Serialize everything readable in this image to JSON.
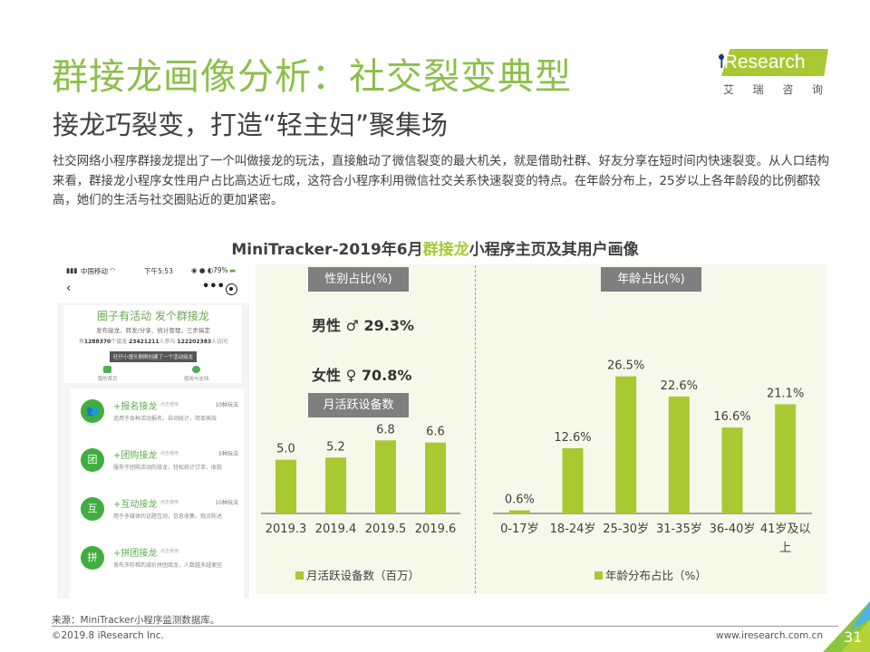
{
  "header": {
    "title": "群接龙画像分析：社交裂变典型",
    "subtitle": "接龙巧裂变，打造“轻主妇”聚集场",
    "description": "社交网络小程序群接龙提出了一个叫做接龙的玩法，直接触动了微信裂变的最大机关，就是借助社群、好友分享在短时间内快速裂变。从人口结构来看，群接龙小程序女性用户占比高达近七成，这符合小程序利用微信社交关系快速裂变的特点。在年龄分布上，25岁以上各年龄段的比例都较高，她们的生活与社交圈贴近的更加紧密。"
  },
  "logo": {
    "brand": "iResearch",
    "chinese": [
      "艾",
      "瑞",
      "咨",
      "询"
    ]
  },
  "figure_title": {
    "prefix": "MiniTracker-2019年6月",
    "highlight": "群接龙",
    "suffix": "小程序主页及其用户画像"
  },
  "phone": {
    "status": {
      "carrier": "中国移动",
      "time": "下午5:53",
      "battery": "79%"
    },
    "hero_title": "圈子有活动 发个群接龙",
    "hero_sub": "发布接龙、转发/分享、统计管理，三步搞定",
    "stats": {
      "pre1": "有",
      "v1": "1288370",
      "s1": "个接龙",
      "v2": "23421211",
      "s2": "人参与",
      "v3": "122202383",
      "s3": "人访问"
    },
    "banner": "旺仔小馒头刚刚创建了一个活动接龙",
    "icons": [
      "我的首页",
      "使用与支持"
    ],
    "items": [
      {
        "name": "+报名接龙",
        "tag": "点击使用",
        "count": "10种玩法",
        "desc": "适用于各种活动报名，自动统计，简单高效",
        "glyph": "👥"
      },
      {
        "name": "+团购接龙",
        "tag": "点击使用",
        "count": "5种玩法",
        "desc": "服务于团购活动的接龙，轻松统计订单、收款",
        "glyph": "团"
      },
      {
        "name": "+互动接龙",
        "tag": "点击使用",
        "count": "10种玩法",
        "desc": "用于多媒体的话题互动，信息收集，观点陈述",
        "glyph": "互"
      },
      {
        "name": "+拼团接龙",
        "tag": "点击使用",
        "count": "",
        "desc": "发布多阶梯的减价拼团接龙，人数越多越便宜",
        "glyph": "拼"
      }
    ]
  },
  "gender": {
    "tag": "性别占比(%)",
    "male_label": "男性",
    "male_symbol": "♂",
    "male_value": "29.3%",
    "female_label": "女性",
    "female_symbol": "♀",
    "female_value": "70.8%"
  },
  "colors": {
    "bar": "#a8c932",
    "title_green": "#8cc04a",
    "tag_gray": "#7f7f7f",
    "panel_bg": "#f6f8ea"
  },
  "chart_data": [
    {
      "type": "bar",
      "title": "月活跃设备数",
      "categories": [
        "2019.3",
        "2019.4",
        "2019.5",
        "2019.6"
      ],
      "values": [
        5.0,
        5.2,
        6.8,
        6.6
      ],
      "labels": [
        "5.0",
        "5.2",
        "6.8",
        "6.6"
      ],
      "legend": "月活跃设备数（百万）",
      "legend_position": "bottom",
      "ylim": [
        0,
        7.5
      ],
      "xlabel": "",
      "ylabel": "",
      "grid": false
    },
    {
      "type": "bar",
      "title": "年龄占比(%)",
      "categories": [
        "0-17岁",
        "18-24岁",
        "25-30岁",
        "31-35岁",
        "36-40岁",
        "41岁及以上"
      ],
      "category_lines": [
        [
          "0-17岁"
        ],
        [
          "18-24岁"
        ],
        [
          "25-30岁"
        ],
        [
          "31-35岁"
        ],
        [
          "36-40岁"
        ],
        [
          "41岁及以",
          "上"
        ]
      ],
      "values": [
        0.6,
        12.6,
        26.5,
        22.6,
        16.6,
        21.1
      ],
      "labels": [
        "0.6%",
        "12.6%",
        "26.5%",
        "22.6%",
        "16.6%",
        "21.1%"
      ],
      "legend": "年龄分布占比（%）",
      "legend_position": "bottom",
      "ylim": [
        0,
        28
      ],
      "xlabel": "",
      "ylabel": "",
      "grid": false
    }
  ],
  "footer": {
    "source": "来源：MiniTracker小程序监测数据库。",
    "copyright": "©2019.8 iResearch Inc.",
    "website": "www.iresearch.com.cn",
    "page": "31"
  }
}
